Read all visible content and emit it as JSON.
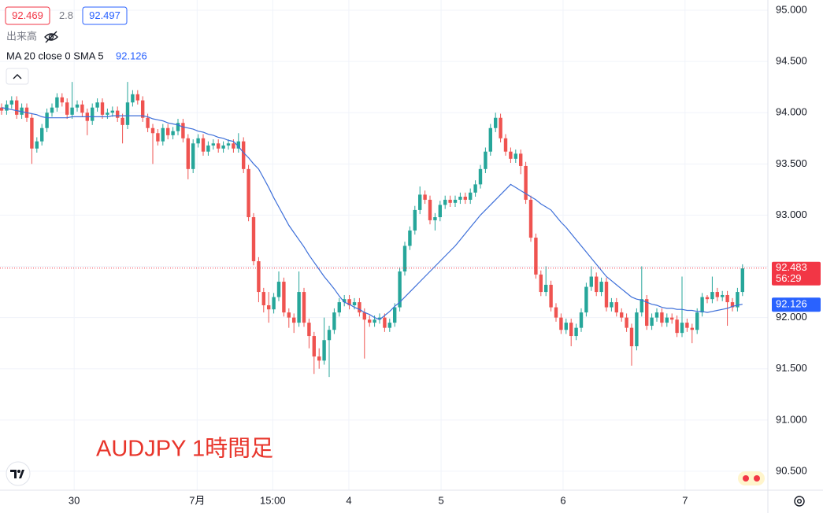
{
  "chart_data": {
    "type": "candlestick",
    "header": {
      "bid": 92.469,
      "spread": 2.8,
      "ask": 92.497,
      "volume_label": "出来高"
    },
    "annotation": "AUDJPY 1時間足",
    "up_color": "#26a69a",
    "down_color": "#ef5350",
    "current_price": {
      "value": 92.483,
      "countdown": "56:29",
      "color": "#f23645"
    },
    "ma": {
      "name": "MA 20 close 0 SMA 5",
      "color": "#3d6fd9",
      "last_value": 92.126,
      "values": [
        94.05,
        94.04,
        94.03,
        94.02,
        94.01,
        94.0,
        93.99,
        93.98,
        93.96,
        93.95,
        93.95,
        93.95,
        93.95,
        93.95,
        93.96,
        93.96,
        93.96,
        93.96,
        93.96,
        93.96,
        93.96,
        93.96,
        93.97,
        93.97,
        93.97,
        93.97,
        93.97,
        93.97,
        93.97,
        93.96,
        93.94,
        93.93,
        93.92,
        93.9,
        93.89,
        93.88,
        93.86,
        93.85,
        93.84,
        93.82,
        93.81,
        93.79,
        93.78,
        93.76,
        93.75,
        93.73,
        93.72,
        93.67,
        93.61,
        93.56,
        93.5,
        93.45,
        93.36,
        93.27,
        93.17,
        93.08,
        92.99,
        92.9,
        92.83,
        92.76,
        92.69,
        92.61,
        92.54,
        92.47,
        92.4,
        92.34,
        92.28,
        92.21,
        92.15,
        92.13,
        92.1,
        92.08,
        92.05,
        92.03,
        92.0,
        91.98,
        92.02,
        92.06,
        92.11,
        92.15,
        92.2,
        92.25,
        92.3,
        92.35,
        92.4,
        92.45,
        92.5,
        92.55,
        92.6,
        92.65,
        92.7,
        92.76,
        92.82,
        92.88,
        92.94,
        93.0,
        93.05,
        93.1,
        93.15,
        93.2,
        93.25,
        93.3,
        93.27,
        93.24,
        93.21,
        93.18,
        93.15,
        93.11,
        93.08,
        93.05,
        92.99,
        92.93,
        92.88,
        92.82,
        92.76,
        92.7,
        92.64,
        92.58,
        92.52,
        92.46,
        92.4,
        92.36,
        92.32,
        92.28,
        92.24,
        92.2,
        92.18,
        92.17,
        92.15,
        92.13,
        92.12,
        92.1,
        92.09,
        92.09,
        92.08,
        92.08,
        92.07,
        92.07,
        92.06,
        92.06,
        92.05,
        92.06,
        92.07,
        92.08,
        92.09,
        92.11,
        92.12,
        92.13
      ]
    },
    "ohlc": [
      [
        94.05,
        94.09,
        93.98,
        94.02
      ],
      [
        94.02,
        94.12,
        93.98,
        94.08
      ],
      [
        94.08,
        94.16,
        94.04,
        94.12
      ],
      [
        94.12,
        94.16,
        93.94,
        93.98
      ],
      [
        93.98,
        94.09,
        93.94,
        94.05
      ],
      [
        94.05,
        94.09,
        93.91,
        93.95
      ],
      [
        93.95,
        93.99,
        93.5,
        93.65
      ],
      [
        93.65,
        93.76,
        93.61,
        93.72
      ],
      [
        93.72,
        93.89,
        93.68,
        93.85
      ],
      [
        93.85,
        94.04,
        93.81,
        94.0
      ],
      [
        94.0,
        94.09,
        93.96,
        94.05
      ],
      [
        94.05,
        94.19,
        94.01,
        94.15
      ],
      [
        94.15,
        94.19,
        94.06,
        94.1
      ],
      [
        94.1,
        94.14,
        93.94,
        93.98
      ],
      [
        93.98,
        94.3,
        93.94,
        94.05
      ],
      [
        94.05,
        94.12,
        94.01,
        94.08
      ],
      [
        94.08,
        94.12,
        93.96,
        94.0
      ],
      [
        94.0,
        94.04,
        93.78,
        93.92
      ],
      [
        93.92,
        94.09,
        93.88,
        94.05
      ],
      [
        94.05,
        94.14,
        94.01,
        94.1
      ],
      [
        94.1,
        94.14,
        93.94,
        93.98
      ],
      [
        93.98,
        94.04,
        93.94,
        94.0
      ],
      [
        94.0,
        94.06,
        93.96,
        94.02
      ],
      [
        94.02,
        94.06,
        93.91,
        93.95
      ],
      [
        93.95,
        93.99,
        93.7,
        93.88
      ],
      [
        93.88,
        94.3,
        93.84,
        94.1
      ],
      [
        94.1,
        94.22,
        94.06,
        94.18
      ],
      [
        94.18,
        94.22,
        94.08,
        94.12
      ],
      [
        94.12,
        94.16,
        93.91,
        93.95
      ],
      [
        93.95,
        93.99,
        93.81,
        93.85
      ],
      [
        93.85,
        93.89,
        93.5,
        93.8
      ],
      [
        93.8,
        93.84,
        93.68,
        93.72
      ],
      [
        93.72,
        93.89,
        93.68,
        93.85
      ],
      [
        93.85,
        93.89,
        93.74,
        93.78
      ],
      [
        93.78,
        93.86,
        93.74,
        93.82
      ],
      [
        93.82,
        93.94,
        93.78,
        93.9
      ],
      [
        93.9,
        93.94,
        93.71,
        93.75
      ],
      [
        93.75,
        93.79,
        93.35,
        93.45
      ],
      [
        93.45,
        93.74,
        93.41,
        93.7
      ],
      [
        93.7,
        93.79,
        93.66,
        93.75
      ],
      [
        93.75,
        93.79,
        93.58,
        93.62
      ],
      [
        93.62,
        93.72,
        93.58,
        93.68
      ],
      [
        93.68,
        93.74,
        93.64,
        93.7
      ],
      [
        93.7,
        93.74,
        93.61,
        93.65
      ],
      [
        93.65,
        93.72,
        93.61,
        93.68
      ],
      [
        93.68,
        93.74,
        93.64,
        93.7
      ],
      [
        93.7,
        93.74,
        93.61,
        93.65
      ],
      [
        93.65,
        93.8,
        93.61,
        93.72
      ],
      [
        93.72,
        93.76,
        93.41,
        93.45
      ],
      [
        93.45,
        93.49,
        92.94,
        92.98
      ],
      [
        92.98,
        93.02,
        92.51,
        92.55
      ],
      [
        92.55,
        92.59,
        92.15,
        92.25
      ],
      [
        92.25,
        92.29,
        92.05,
        92.12
      ],
      [
        92.12,
        92.25,
        91.95,
        92.08
      ],
      [
        92.08,
        92.24,
        92.04,
        92.2
      ],
      [
        92.2,
        92.45,
        92.16,
        92.35
      ],
      [
        92.35,
        92.39,
        92.01,
        92.05
      ],
      [
        92.05,
        92.09,
        91.9,
        92.0
      ],
      [
        92.0,
        92.04,
        91.85,
        91.95
      ],
      [
        91.95,
        92.45,
        91.91,
        92.25
      ],
      [
        92.25,
        92.29,
        91.91,
        91.95
      ],
      [
        91.95,
        91.99,
        91.7,
        91.82
      ],
      [
        91.82,
        91.86,
        91.45,
        91.62
      ],
      [
        91.62,
        91.7,
        91.5,
        91.58
      ],
      [
        91.58,
        92.0,
        91.54,
        91.78
      ],
      [
        91.78,
        91.92,
        91.42,
        91.88
      ],
      [
        91.88,
        92.09,
        91.84,
        92.05
      ],
      [
        92.05,
        92.19,
        92.01,
        92.15
      ],
      [
        92.15,
        92.22,
        92.11,
        92.18
      ],
      [
        92.18,
        92.22,
        92.08,
        92.12
      ],
      [
        92.12,
        92.19,
        92.08,
        92.15
      ],
      [
        92.15,
        92.19,
        92.01,
        92.05
      ],
      [
        92.05,
        92.09,
        91.6,
        91.98
      ],
      [
        91.98,
        92.02,
        91.91,
        91.95
      ],
      [
        91.95,
        92.02,
        91.91,
        91.98
      ],
      [
        91.98,
        92.04,
        91.94,
        92.0
      ],
      [
        92.0,
        92.04,
        91.86,
        91.9
      ],
      [
        91.9,
        91.99,
        91.86,
        91.95
      ],
      [
        91.95,
        92.14,
        91.91,
        92.1
      ],
      [
        92.1,
        92.49,
        92.06,
        92.45
      ],
      [
        92.45,
        92.74,
        92.41,
        92.7
      ],
      [
        92.7,
        92.89,
        92.66,
        92.85
      ],
      [
        92.85,
        93.09,
        92.81,
        93.05
      ],
      [
        93.05,
        93.28,
        93.01,
        93.2
      ],
      [
        93.2,
        93.24,
        93.11,
        93.15
      ],
      [
        93.15,
        93.19,
        92.91,
        92.95
      ],
      [
        92.95,
        93.02,
        92.85,
        92.98
      ],
      [
        92.98,
        93.14,
        92.94,
        93.1
      ],
      [
        93.1,
        93.19,
        93.06,
        93.15
      ],
      [
        93.15,
        93.19,
        93.08,
        93.12
      ],
      [
        93.12,
        93.19,
        93.08,
        93.15
      ],
      [
        93.15,
        93.22,
        93.11,
        93.18
      ],
      [
        93.18,
        93.22,
        93.11,
        93.15
      ],
      [
        93.15,
        93.26,
        93.11,
        93.22
      ],
      [
        93.22,
        93.34,
        93.18,
        93.3
      ],
      [
        93.3,
        93.49,
        93.26,
        93.45
      ],
      [
        93.45,
        93.66,
        93.41,
        93.62
      ],
      [
        93.62,
        93.89,
        93.58,
        93.85
      ],
      [
        93.85,
        94.0,
        93.81,
        93.95
      ],
      [
        93.95,
        93.99,
        93.71,
        93.75
      ],
      [
        93.75,
        93.79,
        93.58,
        93.62
      ],
      [
        93.62,
        93.66,
        93.51,
        93.55
      ],
      [
        93.55,
        93.64,
        93.51,
        93.6
      ],
      [
        93.6,
        93.64,
        93.4,
        93.48
      ],
      [
        93.48,
        93.52,
        93.11,
        93.15
      ],
      [
        93.15,
        93.19,
        92.74,
        92.78
      ],
      [
        92.78,
        92.82,
        92.38,
        92.42
      ],
      [
        92.42,
        92.46,
        92.21,
        92.25
      ],
      [
        92.25,
        92.5,
        92.21,
        92.32
      ],
      [
        92.32,
        92.36,
        92.06,
        92.1
      ],
      [
        92.1,
        92.14,
        91.96,
        92.0
      ],
      [
        92.0,
        92.04,
        91.84,
        91.88
      ],
      [
        91.88,
        91.99,
        91.84,
        91.95
      ],
      [
        91.95,
        91.99,
        91.72,
        91.82
      ],
      [
        91.82,
        91.94,
        91.78,
        91.9
      ],
      [
        91.9,
        92.09,
        91.86,
        92.05
      ],
      [
        92.05,
        92.34,
        92.01,
        92.3
      ],
      [
        92.3,
        92.5,
        92.26,
        92.4
      ],
      [
        92.4,
        92.44,
        92.21,
        92.25
      ],
      [
        92.25,
        92.39,
        92.21,
        92.35
      ],
      [
        92.35,
        92.39,
        92.06,
        92.1
      ],
      [
        92.1,
        92.19,
        92.06,
        92.15
      ],
      [
        92.15,
        92.19,
        92.01,
        92.05
      ],
      [
        92.05,
        92.09,
        91.96,
        92.0
      ],
      [
        92.0,
        92.04,
        91.86,
        91.9
      ],
      [
        91.9,
        91.94,
        91.53,
        91.72
      ],
      [
        91.72,
        92.09,
        91.68,
        92.05
      ],
      [
        92.05,
        92.5,
        92.01,
        92.18
      ],
      [
        92.18,
        92.22,
        91.88,
        91.92
      ],
      [
        91.92,
        92.04,
        91.88,
        92.0
      ],
      [
        92.0,
        92.09,
        91.96,
        92.05
      ],
      [
        92.05,
        92.09,
        91.91,
        91.95
      ],
      [
        91.95,
        92.04,
        91.91,
        92.0
      ],
      [
        92.0,
        92.04,
        91.94,
        91.98
      ],
      [
        91.98,
        92.02,
        91.81,
        91.85
      ],
      [
        91.85,
        92.4,
        91.81,
        91.95
      ],
      [
        91.95,
        91.99,
        91.86,
        91.9
      ],
      [
        91.9,
        91.94,
        91.75,
        91.88
      ],
      [
        91.88,
        92.09,
        91.84,
        92.05
      ],
      [
        92.05,
        92.24,
        92.01,
        92.2
      ],
      [
        92.2,
        92.22,
        92.14,
        92.18
      ],
      [
        92.18,
        92.4,
        92.14,
        92.25
      ],
      [
        92.25,
        92.29,
        92.16,
        92.2
      ],
      [
        92.2,
        92.26,
        92.16,
        92.22
      ],
      [
        92.22,
        92.26,
        91.92,
        92.15
      ],
      [
        92.15,
        92.19,
        92.06,
        92.1
      ],
      [
        92.1,
        92.29,
        92.06,
        92.25
      ],
      [
        92.25,
        92.52,
        92.21,
        92.48
      ]
    ],
    "ylim": [
      90.315,
      95.1
    ],
    "yticks": [
      {
        "value": 95,
        "label": "95.000"
      },
      {
        "value": 94.5,
        "label": "94.500"
      },
      {
        "value": 94,
        "label": "94.000"
      },
      {
        "value": 93.5,
        "label": "93.500"
      },
      {
        "value": 93,
        "label": "93.000"
      },
      {
        "value": 92.5,
        "label": "92.500"
      },
      {
        "value": 92,
        "label": "92.000"
      },
      {
        "value": 91.5,
        "label": "91.500"
      },
      {
        "value": 91,
        "label": "91.000"
      },
      {
        "value": 90.5,
        "label": "90.500"
      }
    ],
    "xticks": [
      {
        "value": 14.4,
        "label": "30"
      },
      {
        "value": 38.8,
        "label": "7月"
      },
      {
        "value": 53.8,
        "label": "15:00"
      },
      {
        "value": 68.9,
        "label": "4"
      },
      {
        "value": 87.2,
        "label": "5"
      },
      {
        "value": 111.4,
        "label": "6"
      },
      {
        "value": 135.6,
        "label": "7"
      }
    ],
    "grid": true
  }
}
